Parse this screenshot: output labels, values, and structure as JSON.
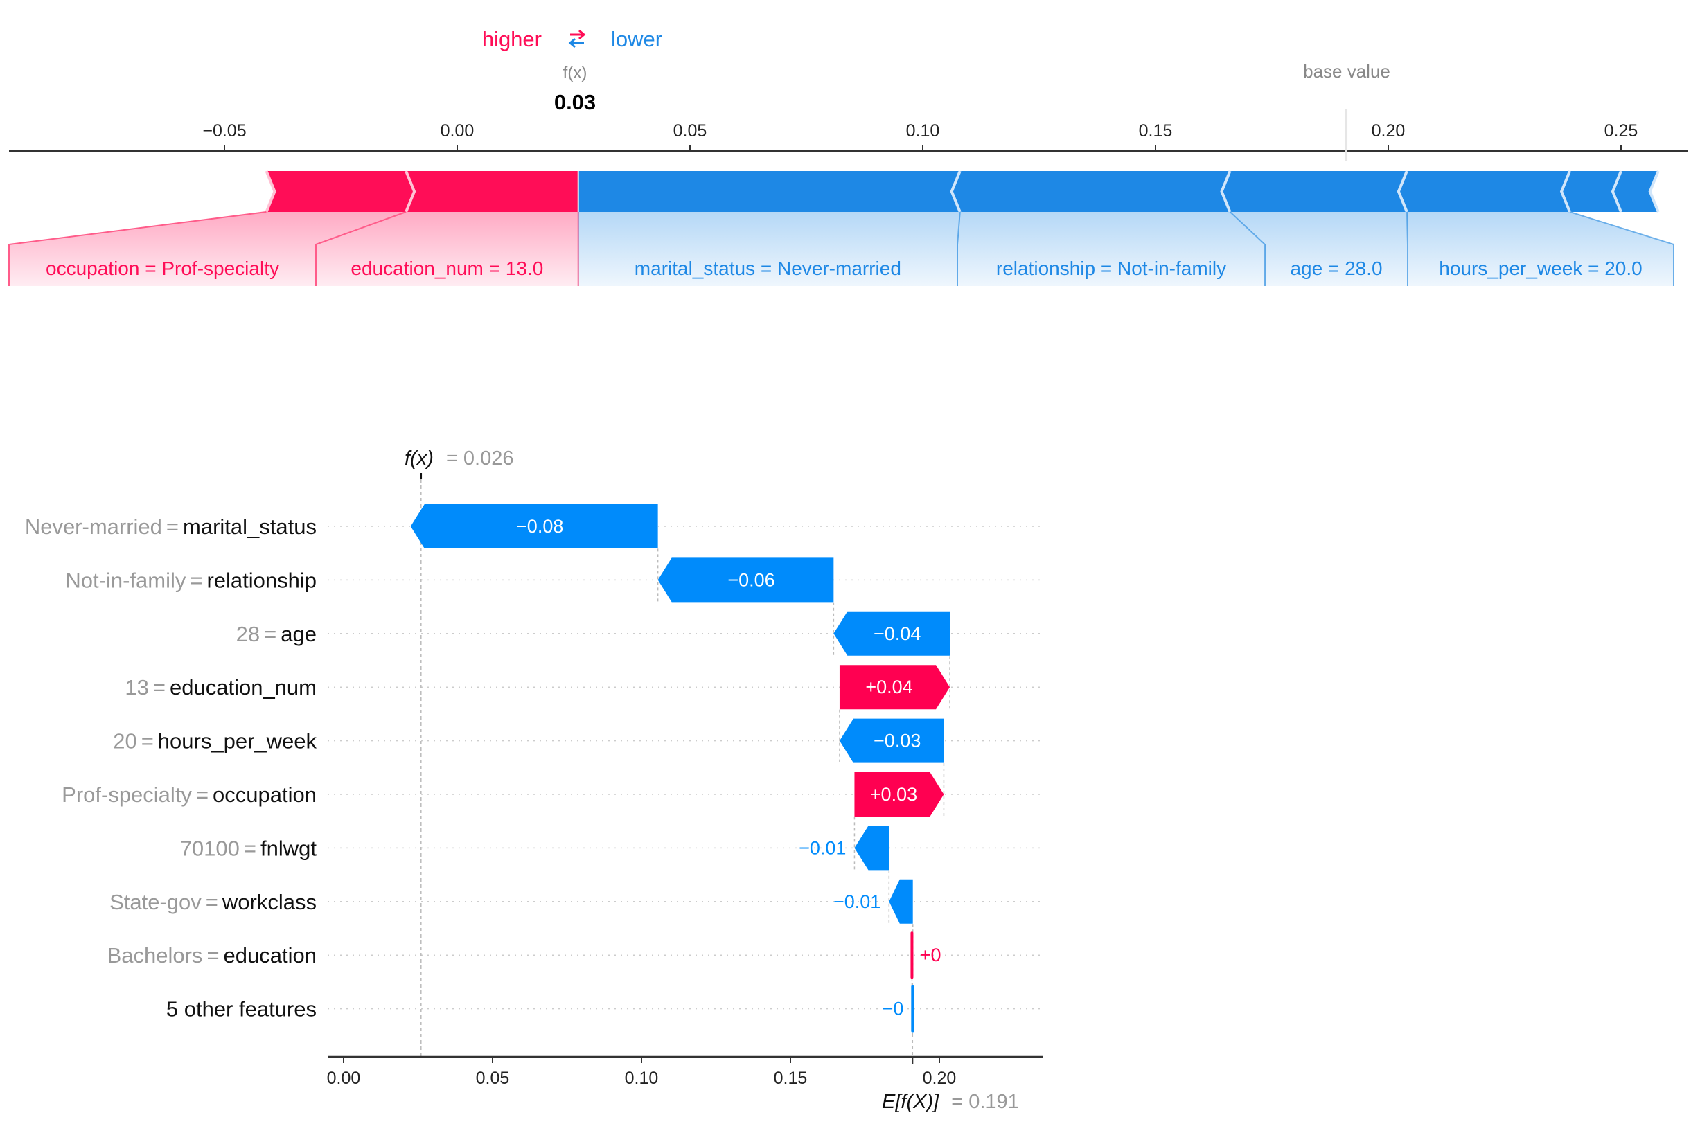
{
  "chart_data": [
    {
      "type": "force",
      "title": "",
      "legend": {
        "higher_label": "higher",
        "lower_label": "lower",
        "arrows_icon": "swap-arrows-icon"
      },
      "output_label": "f(x)",
      "output_value": 0.03,
      "output_value_text": "0.03",
      "base_value_label": "base value",
      "base_value": 0.191,
      "xlim": [
        -0.098,
        0.267
      ],
      "ticks": [
        -0.05,
        0.0,
        0.05,
        0.1,
        0.15,
        0.2,
        0.25
      ],
      "tick_labels": [
        "−0.05",
        "0.00",
        "0.05",
        "0.10",
        "0.15",
        "0.20",
        "0.25"
      ],
      "positive_features": [
        {
          "feature": "occupation",
          "value": "Prof-specialty",
          "shap": 0.03,
          "label": "occupation = Prof-specialty"
        },
        {
          "feature": "education_num",
          "value": "13.0",
          "shap": 0.037,
          "label": "education_num = 13.0"
        }
      ],
      "negative_features": [
        {
          "feature": "marital_status",
          "value": "Never-married",
          "shap": -0.082,
          "label": "marital_status = Never-married"
        },
        {
          "feature": "relationship",
          "value": "Not-in-family",
          "shap": -0.058,
          "label": "relationship = Not-in-family"
        },
        {
          "feature": "age",
          "value": "28.0",
          "shap": -0.038,
          "label": "age = 28.0"
        },
        {
          "feature": "hours_per_week",
          "value": "20.0",
          "shap": -0.035,
          "label": "hours_per_week = 20.0"
        },
        {
          "feature": "fnlwgt",
          "value": "",
          "shap": -0.011,
          "label": ""
        },
        {
          "feature": "workclass",
          "value": "",
          "shap": -0.008,
          "label": ""
        }
      ],
      "colors": {
        "positive": "#ff0d57",
        "negative": "#1e88e5",
        "positive_light": "#ffc3d5",
        "negative_light": "#d1e6fa"
      }
    },
    {
      "type": "waterfall",
      "fx_label": "f(x)",
      "fx_value_text": "= 0.026",
      "fx_value": 0.026,
      "base_label": "E[f(X)]",
      "base_value_text": "= 0.191",
      "base_value": 0.191,
      "xlabel": "",
      "xlim": [
        -0.005,
        0.235
      ],
      "ticks": [
        0.0,
        0.05,
        0.1,
        0.15,
        0.2
      ],
      "tick_labels": [
        "0.00",
        "0.05",
        "0.10",
        "0.15",
        "0.20"
      ],
      "grid": "horizontal dotted",
      "rows": [
        {
          "value_label": "Never-married",
          "feature": "marital_status",
          "shap": -0.083,
          "text": "−0.08"
        },
        {
          "value_label": "Not-in-family",
          "feature": "relationship",
          "shap": -0.059,
          "text": "−0.06"
        },
        {
          "value_label": "28",
          "feature": "age",
          "shap": -0.039,
          "text": "−0.04"
        },
        {
          "value_label": "13",
          "feature": "education_num",
          "shap": 0.037,
          "text": "+0.04"
        },
        {
          "value_label": "20",
          "feature": "hours_per_week",
          "shap": -0.035,
          "text": "−0.03"
        },
        {
          "value_label": "Prof-specialty",
          "feature": "occupation",
          "shap": 0.03,
          "text": "+0.03"
        },
        {
          "value_label": "70100",
          "feature": "fnlwgt",
          "shap": -0.0116,
          "text": "−0.01"
        },
        {
          "value_label": "State-gov",
          "feature": "workclass",
          "shap": -0.008,
          "text": "−0.01"
        },
        {
          "value_label": "Bachelors",
          "feature": "education",
          "shap": 0.0003,
          "text": "+0"
        },
        {
          "value_label": "",
          "feature": "5 other features",
          "shap": -0.0002,
          "text": "−0"
        }
      ],
      "colors": {
        "positive": "#ff0051",
        "negative": "#008bfb",
        "grid": "#cccccc"
      }
    }
  ]
}
